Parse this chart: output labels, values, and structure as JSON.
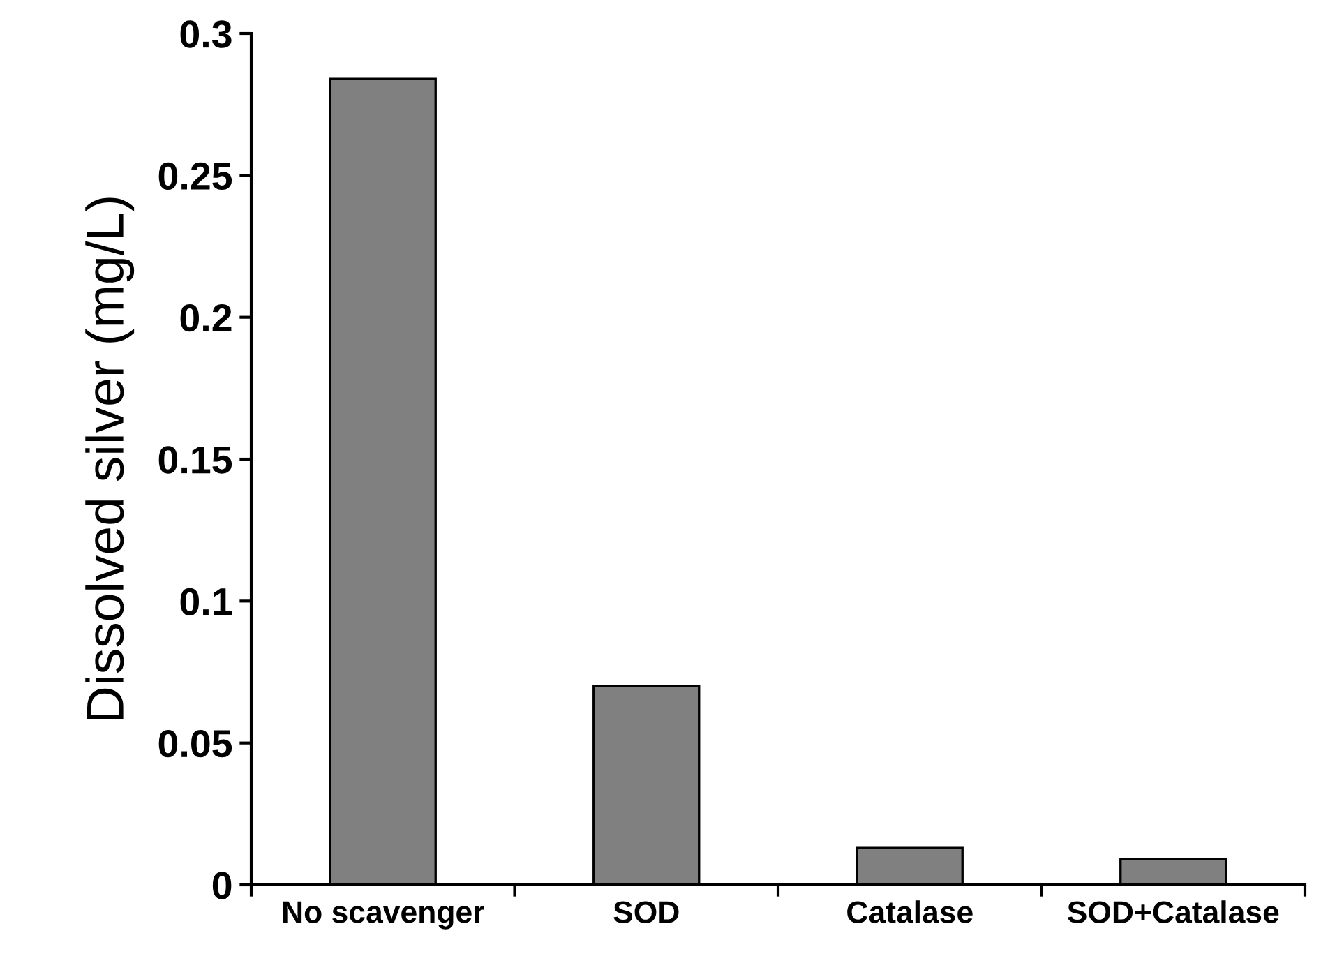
{
  "chart_data": {
    "type": "bar",
    "ylabel": "Dissolved silver (mg/L)",
    "categories": [
      "No scavenger",
      "SOD",
      "Catalase",
      "SOD+Catalase"
    ],
    "values": [
      0.284,
      0.07,
      0.013,
      0.009
    ],
    "color": "#808080",
    "ylim": [
      0,
      0.3
    ],
    "yticks": [
      0,
      0.05,
      0.1,
      0.15,
      0.2,
      0.25,
      0.3
    ],
    "grid": false,
    "legend": false
  }
}
